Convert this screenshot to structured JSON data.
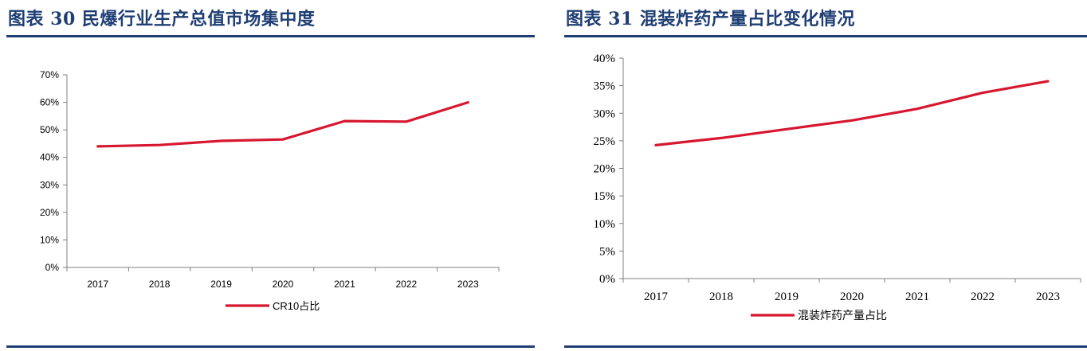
{
  "left": {
    "title": "图表 30  民爆行业生产总值市场集中度",
    "chart_data": {
      "type": "line",
      "categories": [
        "2017",
        "2018",
        "2019",
        "2020",
        "2021",
        "2022",
        "2023"
      ],
      "series": [
        {
          "name": "CR10占比",
          "values": [
            44.0,
            44.5,
            46.0,
            46.5,
            53.2,
            53.0,
            60.0
          ]
        }
      ],
      "ylim": [
        0,
        70
      ],
      "yticks": [
        0,
        10,
        20,
        30,
        40,
        50,
        60,
        70
      ],
      "ytick_labels": [
        "0%",
        "10%",
        "20%",
        "30%",
        "40%",
        "50%",
        "60%",
        "70%"
      ],
      "grid": false,
      "legend_position": "bottom",
      "line_color": "#d7172f"
    }
  },
  "right": {
    "title": "图表 31  混装炸药产量占比变化情况",
    "chart_data": {
      "type": "line",
      "categories": [
        "2017",
        "2018",
        "2019",
        "2020",
        "2021",
        "2022",
        "2023"
      ],
      "series": [
        {
          "name": "混装炸药产量占比",
          "values": [
            24.2,
            25.5,
            27.1,
            28.7,
            30.8,
            33.7,
            35.8
          ]
        }
      ],
      "ylim": [
        0,
        40
      ],
      "yticks": [
        0,
        5,
        10,
        15,
        20,
        25,
        30,
        35,
        40
      ],
      "ytick_labels": [
        "0%",
        "5%",
        "10%",
        "15%",
        "20%",
        "25%",
        "30%",
        "35%",
        "40%"
      ],
      "grid": false,
      "legend_position": "bottom",
      "line_color": "#d7172f"
    }
  }
}
